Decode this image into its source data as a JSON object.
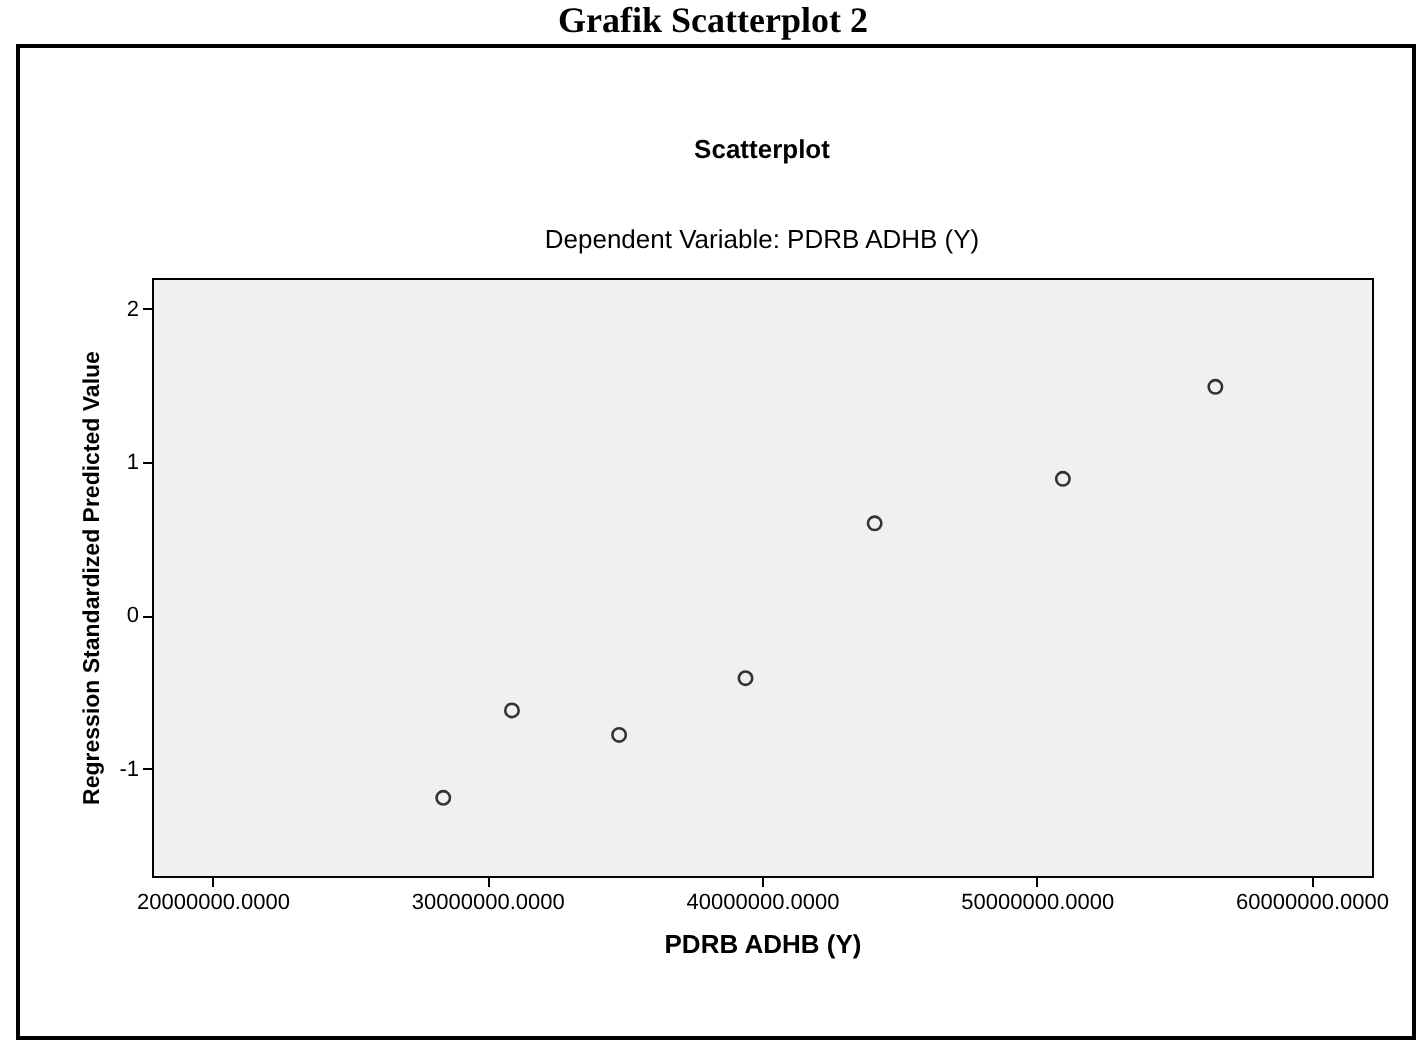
{
  "chart_data": {
    "type": "scatter",
    "title": "Scatterplot",
    "subtitle": "Dependent Variable: PDRB ADHB (Y)",
    "xlabel": "PDRB ADHB (Y)",
    "ylabel": "Regression Standardized Predicted Value",
    "annotations": [
      "Grafik Scatterplot 2"
    ],
    "x": [
      28400000,
      30900000,
      34800000,
      39400000,
      44100000,
      50950000,
      56500000
    ],
    "series": [
      {
        "color": "#333333",
        "values": [
          -1.19,
          -0.62,
          -0.78,
          -0.41,
          0.6,
          0.89,
          1.49
        ]
      }
    ],
    "xlim": [
      17800000,
      62200000
    ],
    "xticks": [
      {
        "value": 20000000,
        "label": "20000000.0000"
      },
      {
        "value": 30000000,
        "label": "30000000.0000"
      },
      {
        "value": 40000000,
        "label": "40000000.0000"
      },
      {
        "value": 50000000,
        "label": "50000000.0000"
      },
      {
        "value": 60000000,
        "label": "60000000.0000"
      }
    ],
    "ylim": [
      -1.7,
      2.2
    ],
    "yticks": [
      -1,
      0,
      1,
      2
    ],
    "grid": false,
    "marker": "circle"
  }
}
